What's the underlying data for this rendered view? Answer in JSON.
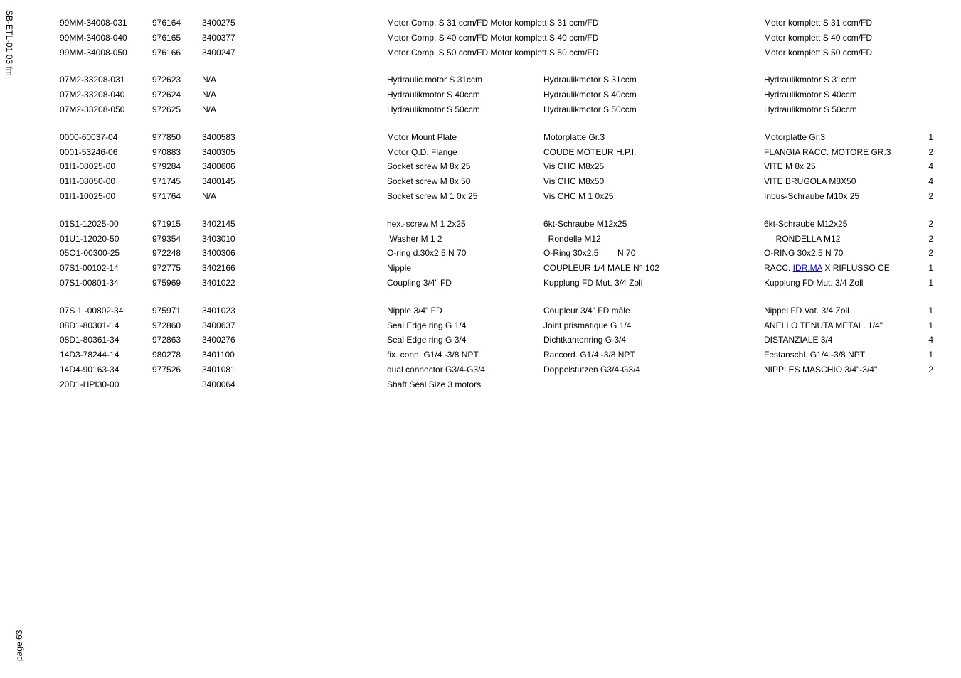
{
  "page": {
    "side_label_top": "SB-ETL-01 03 fm",
    "side_label_bottom": "page 63"
  },
  "groups": [
    {
      "rows": [
        {
          "pn": "99MM-34008-031",
          "id": "976164",
          "code": "3400275",
          "desc": "Motor Comp. S 31 ccm/FD Motor komplett S 31 ccm/FD",
          "col5": null,
          "remark": "Motor komplett S 31 ccm/FD",
          "qty": null
        },
        {
          "pn": "99MM-34008-040",
          "id": "976165",
          "code": "3400377",
          "desc": "Motor Comp. S 40 ccm/FD Motor komplett S 40 ccm/FD",
          "col5": null,
          "remark": "Motor komplett S 40 ccm/FD",
          "qty": null
        },
        {
          "pn": "99MM-34008-050",
          "id": "976166",
          "code": "3400247",
          "desc": "Motor Comp. S 50 ccm/FD Motor komplett S 50 ccm/FD",
          "col5": null,
          "remark": "Motor komplett S 50 ccm/FD",
          "qty": null
        }
      ]
    },
    {
      "rows": [
        {
          "pn": "07M2-33208-031",
          "id": "972623",
          "code": "N/A",
          "desc": "Hydraulic motor S 31ccm",
          "col5": "Hydraulikmotor S 31ccm",
          "remark": "Hydraulikmotor S 31ccm",
          "qty": null
        },
        {
          "pn": "07M2-33208-040",
          "id": "972624",
          "code": "N/A",
          "desc": "Hydraulikmotor S 40ccm",
          "col5": "Hydraulikmotor S 40ccm",
          "remark": "Hydraulikmotor S 40ccm",
          "qty": null
        },
        {
          "pn": "07M2-33208-050",
          "id": "972625",
          "code": "N/A",
          "desc": "Hydraulikmotor S 50ccm",
          "col5": "Hydraulikmotor S 50ccm",
          "remark": "Hydraulikmotor S 50ccm",
          "qty": null
        }
      ]
    },
    {
      "rows": [
        {
          "pn": "0000-60037-04",
          "id": "977850",
          "code": "3400583",
          "desc": "Motor Mount Plate",
          "col5": "Motorplatte Gr.3",
          "remark": "Motorplatte Gr.3",
          "qty": "1"
        },
        {
          "pn": "0001-53246-06",
          "id": "970883",
          "code": "3400305",
          "desc": "Motor Q.D. Flange",
          "col5": "COUDE MOTEUR H.P.I.",
          "remark": "FLANGIA RACC. MOTORE GR.3",
          "qty": "2"
        },
        {
          "pn": "01I1-08025-00",
          "id": "979284",
          "code": "3400606",
          "desc": "Socket screw M 8x 25",
          "col5": "Vis CHC M8x25",
          "remark": "VITE M 8x 25",
          "qty": "4"
        },
        {
          "pn": "01I1-08050-00",
          "id": "971745",
          "code": "3400145",
          "desc": "Socket screw M 8x 50",
          "col5": "Vis CHC M8x50",
          "remark": "VITE BRUGOLA M8X50",
          "qty": "4"
        },
        {
          "pn": "01I1-10025-00",
          "id": "971764",
          "code": "N/A",
          "desc": "Socket screw M 1 0x 25",
          "col5": "Vis CHC M 1 0x25",
          "remark": "Inbus-Schraube M10x 25",
          "qty": "2"
        }
      ]
    },
    {
      "rows": [
        {
          "pn": "01S1-12025-00",
          "id": "971915",
          "code": "3402145",
          "desc": "hex.-screw M 1 2x25",
          "col5": "6kt-Schraube M12x25",
          "remark": "6kt-Schraube M12x25",
          "qty": "2"
        },
        {
          "pn": "01U1-12020-50",
          "id": "979354",
          "code": "3403010",
          "desc": " Washer M 1 2",
          "col5": "  Rondelle M12",
          "remark": "     RONDELLA M12",
          "qty": "2"
        },
        {
          "pn": "05O1-00300-25",
          "id": "972248",
          "code": "3400306",
          "desc": "O-ring d.30x2,5 N 70",
          "col5": "O-Ring 30x2,5        N 70",
          "remark": "O-RING 30x2,5 N 70",
          "qty": "2"
        },
        {
          "pn": "07S1-00102-14",
          "id": "972775",
          "code": "3402166",
          "desc": "Nipple",
          "col5": "COUPLEUR 1/4 MALE N° 102",
          "remark_prefix": "RACC. ",
          "remark_link_text": "IDR.MA",
          "remark_suffix": " X RIFLUSSO CE",
          "qty": "1"
        },
        {
          "pn": "07S1-00801-34",
          "id": "975969",
          "code": "3401022",
          "desc": "Coupling 3/4\" FD",
          "col5": "Kupplung FD Mut. 3/4 Zoll",
          "remark": "Kupplung FD Mut. 3/4 Zoll",
          "qty": "1"
        }
      ]
    },
    {
      "rows": [
        {
          "pn": "07S 1 -00802-34",
          "id": "975971",
          "code": "3401023",
          "desc": "Nipple 3/4\" FD",
          "col5": "Coupleur 3/4\" FD mâle",
          "remark": "Nippel FD Vat. 3/4 Zoll",
          "qty": "1"
        },
        {
          "pn": "08D1-80301-14",
          "id": "972860",
          "code": "3400637",
          "desc": "Seal Edge ring G 1/4",
          "col5": "Joint prismatique G 1/4",
          "remark": "ANELLO TENUTA METAL. 1/4\"",
          "qty": "1"
        },
        {
          "pn": "08D1-80361-34",
          "id": "972863",
          "code": "3400276",
          "desc": "Seal Edge ring G 3/4",
          "col5": "Dichtkantenring G 3/4",
          "remark": "DISTANZIALE 3/4",
          "qty": "4"
        },
        {
          "pn": "14D3-78244-14",
          "id": "980278",
          "code": "3401100",
          "desc": "fix. conn. G1/4 -3/8 NPT",
          "col5": "Raccord. G1/4 -3/8 NPT",
          "remark": "Festanschl. G1/4 -3/8 NPT",
          "qty": "1"
        },
        {
          "pn": "14D4-90163-34",
          "id": "977526",
          "code": "3401081",
          "desc": "dual connector G3/4-G3/4",
          "col5": "Doppelstutzen G3/4-G3/4",
          "remark": "NIPPLES MASCHIO 3/4\"-3/4\"",
          "qty": "2"
        },
        {
          "pn": "20D1-HPI30-00",
          "id": "",
          "code": "3400064",
          "desc": "Shaft Seal Size 3 motors",
          "col5": "",
          "remark": "",
          "qty": null
        }
      ]
    }
  ]
}
